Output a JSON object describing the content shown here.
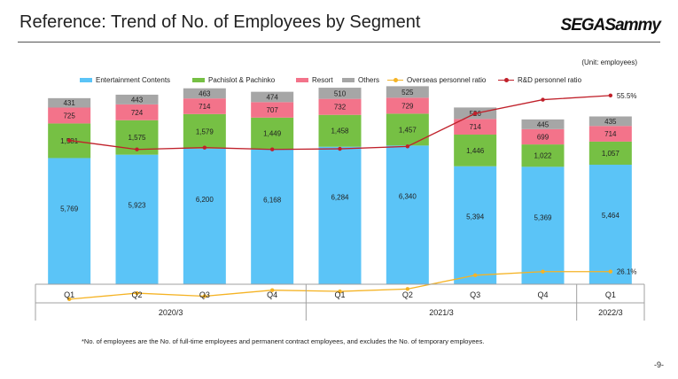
{
  "header": {
    "title": "Reference: Trend of No. of Employees by Segment",
    "logo_text": "SEGASammy"
  },
  "unit_label": "(Unit: employees)",
  "footnote": "*No. of employees are the No. of full-time employees and permanent contract employees, and excludes the No. of temporary employees.",
  "page_number": "-9-",
  "colors": {
    "entertainment": "#5bc4f7",
    "pachislot": "#76c044",
    "resort": "#f3738a",
    "others": "#a6a6a6",
    "overseas_line": "#f5b324",
    "rd_line": "#c0202a"
  },
  "chart_data": {
    "type": "bar",
    "stacked": true,
    "title": "Reference: Trend of No. of Employees by Segment",
    "unit": "employees",
    "categories": [
      "Q1",
      "Q2",
      "Q3",
      "Q4",
      "Q1",
      "Q2",
      "Q3",
      "Q4",
      "Q1"
    ],
    "groups": [
      {
        "label": "2020/3",
        "from": 0,
        "to": 3
      },
      {
        "label": "2021/3",
        "from": 4,
        "to": 7
      },
      {
        "label": "2022/3",
        "from": 8,
        "to": 8
      }
    ],
    "series": [
      {
        "name": "Entertainment Contents",
        "color_key": "entertainment",
        "values": [
          5769,
          5923,
          6200,
          6168,
          6284,
          6340,
          5394,
          5369,
          5464
        ]
      },
      {
        "name": "Pachislot & Pachinko",
        "color_key": "pachislot",
        "values": [
          1581,
          1575,
          1579,
          1449,
          1458,
          1457,
          1446,
          1022,
          1057
        ]
      },
      {
        "name": "Resort",
        "color_key": "resort",
        "values": [
          725,
          724,
          714,
          707,
          732,
          729,
          714,
          699,
          714
        ]
      },
      {
        "name": "Others",
        "color_key": "others",
        "values": [
          431,
          443,
          463,
          474,
          510,
          525,
          526,
          445,
          435
        ]
      }
    ],
    "lines": [
      {
        "name": "Overseas personnel ratio",
        "color_key": "overseas_line",
        "unit": "%",
        "values": [
          21.5,
          22.5,
          22.0,
          23.0,
          22.8,
          23.2,
          25.5,
          26.1,
          26.1
        ],
        "end_label": "26.1%"
      },
      {
        "name": "R&D personnel ratio",
        "color_key": "rd_line",
        "unit": "%",
        "values": [
          48.0,
          46.5,
          46.8,
          46.5,
          46.6,
          47.0,
          52.5,
          54.8,
          55.5
        ],
        "end_label": "55.5%"
      }
    ]
  }
}
